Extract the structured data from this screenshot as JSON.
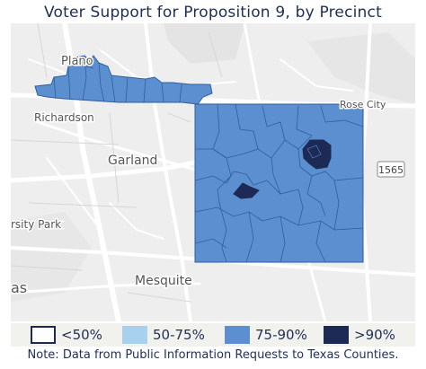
{
  "title": "Voter Support for Proposition 9, by Precinct",
  "map": {
    "place_labels": {
      "plano": "Plano",
      "richardson": "Richardson",
      "garland": "Garland",
      "varsity_park": "rsity Park",
      "mesquite": "Mesquite",
      "dallas": "as",
      "rose_city": "Rose City",
      "highway": "1565"
    },
    "colors": {
      "background": "#eeeeee",
      "roads": "#ffffff",
      "water": "#e0e0e0",
      "precinct_75_90": "#5b8fd0",
      "precinct_gt_90": "#1e2a56",
      "precinct_border": "#2f5f9e"
    }
  },
  "legend": {
    "items": [
      {
        "label": "<50%",
        "color": "#ffffff",
        "border": "#1e2a56"
      },
      {
        "label": "50-75%",
        "color": "#a8d1f0",
        "border": "#a8d1f0"
      },
      {
        "label": "75-90%",
        "color": "#5b8fd0",
        "border": "#5b8fd0"
      },
      {
        "label": ">90%",
        "color": "#1e2a56",
        "border": "#1e2a56"
      }
    ]
  },
  "note": "Note: Data from Public Information Requests to Texas Counties."
}
